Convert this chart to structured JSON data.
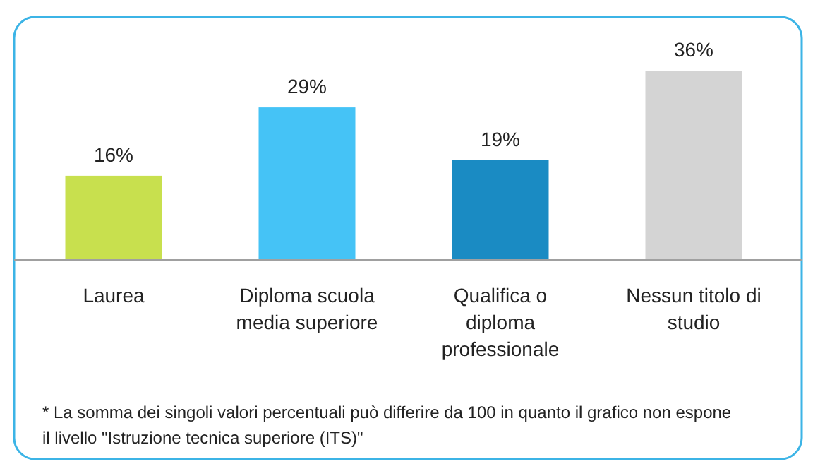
{
  "chart_data": {
    "type": "bar",
    "categories": [
      "Laurea",
      "Diploma scuola media superiore",
      "Qualifica o diploma professionale",
      "Nessun titolo di studio"
    ],
    "values": [
      16,
      29,
      19,
      36
    ],
    "colors": [
      "#c8e04e",
      "#45c3f6",
      "#1a8bc3",
      "#d4d4d4"
    ],
    "value_labels": [
      "16%",
      "29%",
      "19%",
      "36%"
    ],
    "annotations": [
      "* La somma dei singoli valori percentuali può differire da 100 in quanto il grafico non espone il livello \"Istruzione tecnica superiore (ITS)\""
    ]
  }
}
